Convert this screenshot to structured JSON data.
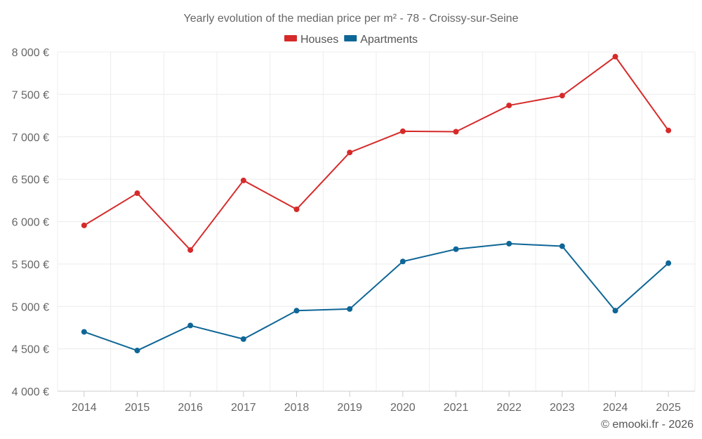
{
  "chart_data": {
    "type": "line",
    "title": "Yearly evolution of the median price per m² - 78 - Croissy-sur-Seine",
    "xlabel": "",
    "ylabel": "",
    "categories": [
      "2014",
      "2015",
      "2016",
      "2017",
      "2018",
      "2019",
      "2020",
      "2021",
      "2022",
      "2023",
      "2024",
      "2025"
    ],
    "series": [
      {
        "name": "Houses",
        "color": "#d62a2a",
        "values": [
          5955,
          6335,
          5665,
          6485,
          6145,
          6815,
          7065,
          7060,
          7370,
          7485,
          7945,
          7075
        ]
      },
      {
        "name": "Apartments",
        "color": "#0e6696",
        "values": [
          4700,
          4480,
          4775,
          4615,
          4950,
          4970,
          5530,
          5675,
          5740,
          5710,
          4950,
          5510
        ]
      }
    ],
    "ylim": [
      4000,
      8000
    ],
    "yticks": [
      4000,
      4500,
      5000,
      5500,
      6000,
      6500,
      7000,
      7500,
      8000
    ],
    "ytick_labels": [
      "4 000 €",
      "4 500 €",
      "5 000 €",
      "5 500 €",
      "6 000 €",
      "6 500 €",
      "7 000 €",
      "7 500 €",
      "8 000 €"
    ],
    "grid": true,
    "legend_position": "top-center"
  },
  "credit": "© emooki.fr - 2026"
}
